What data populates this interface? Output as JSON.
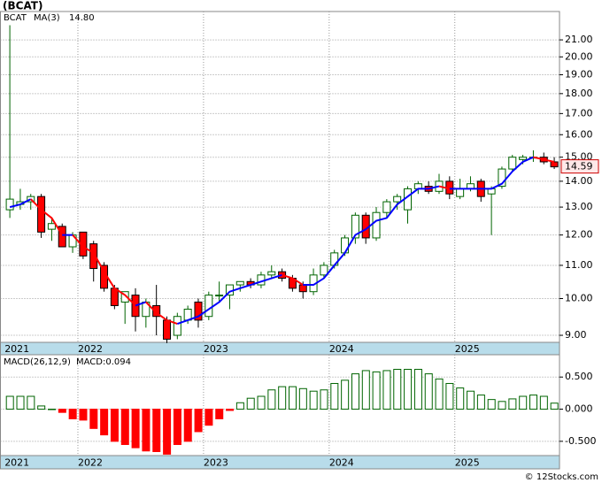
{
  "chart_data": [
    {
      "type": "candlestick",
      "title": "(BCAT)",
      "log": true,
      "grid": true,
      "categories": [
        "2021",
        null,
        null,
        null,
        null,
        null,
        null,
        "2022",
        null,
        null,
        null,
        null,
        null,
        null,
        null,
        null,
        null,
        null,
        null,
        "2023",
        null,
        null,
        null,
        null,
        null,
        null,
        null,
        null,
        null,
        null,
        null,
        "2024",
        null,
        null,
        null,
        null,
        null,
        null,
        null,
        null,
        null,
        null,
        null,
        "2025",
        null,
        null,
        null,
        null,
        null,
        null,
        null,
        null,
        null
      ],
      "series": [
        {
          "name": "BCAT",
          "color_up": "#006400",
          "color_down": "#ff0000",
          "open": [
            12.9,
            13.1,
            13.2,
            13.4,
            12.2,
            12.3,
            11.6,
            12.1,
            11.7,
            11.0,
            10.3,
            9.9,
            10.1,
            9.5,
            9.8,
            9.4,
            9.0,
            9.4,
            9.9,
            9.5,
            10.1,
            10.1,
            10.4,
            10.5,
            10.4,
            10.7,
            10.8,
            10.6,
            10.4,
            10.2,
            10.7,
            11.0,
            11.4,
            11.9,
            12.7,
            11.9,
            12.8,
            13.2,
            12.9,
            13.7,
            13.8,
            13.6,
            14.0,
            13.4,
            13.7,
            14.0,
            13.5,
            13.8,
            14.5,
            14.9,
            15.0,
            15.0,
            14.8
          ],
          "high": [
            21.9,
            13.7,
            13.5,
            13.5,
            12.6,
            12.4,
            12.1,
            12.1,
            11.8,
            11.1,
            10.4,
            10.2,
            10.3,
            10.0,
            10.4,
            9.5,
            9.6,
            9.8,
            10.0,
            10.2,
            10.5,
            10.4,
            10.5,
            10.6,
            10.8,
            11.0,
            10.9,
            10.7,
            10.5,
            10.9,
            11.1,
            11.5,
            12.0,
            12.8,
            12.8,
            13.0,
            13.3,
            13.5,
            13.8,
            14.0,
            14.0,
            14.3,
            14.2,
            14.1,
            14.2,
            14.1,
            13.8,
            14.6,
            15.1,
            15.1,
            15.3,
            15.2,
            15.0
          ],
          "low": [
            12.6,
            12.9,
            12.9,
            11.9,
            11.8,
            11.6,
            11.4,
            11.2,
            10.5,
            10.2,
            9.7,
            9.3,
            9.1,
            9.2,
            9.0,
            8.8,
            8.9,
            9.3,
            9.2,
            9.4,
            9.9,
            9.7,
            10.2,
            10.3,
            10.3,
            10.6,
            10.5,
            10.2,
            10.0,
            10.1,
            10.6,
            10.9,
            11.3,
            11.7,
            11.7,
            11.8,
            12.6,
            12.9,
            12.4,
            13.5,
            13.5,
            13.5,
            13.3,
            13.3,
            13.6,
            13.2,
            12.0,
            13.7,
            14.4,
            14.7,
            14.8,
            14.7,
            14.5
          ],
          "close": [
            13.3,
            13.2,
            13.4,
            12.1,
            12.4,
            11.6,
            12.0,
            11.3,
            10.9,
            10.3,
            9.8,
            10.2,
            9.5,
            9.9,
            9.5,
            8.9,
            9.5,
            9.7,
            9.4,
            10.1,
            10.1,
            10.4,
            10.5,
            10.4,
            10.7,
            10.8,
            10.6,
            10.3,
            10.2,
            10.7,
            11.0,
            11.4,
            11.9,
            12.7,
            11.9,
            12.8,
            13.2,
            13.4,
            13.7,
            13.9,
            13.6,
            14.0,
            13.5,
            13.7,
            13.9,
            13.4,
            13.7,
            14.5,
            15.0,
            15.0,
            15.0,
            14.8,
            14.59
          ]
        },
        {
          "name": "MA(3)",
          "color": "#0000ff",
          "down_color": "#ff0000",
          "last_label": "14.80",
          "values": [
            13.0,
            13.1,
            13.3,
            12.9,
            12.6,
            12.0,
            12.0,
            11.6,
            11.4,
            10.8,
            10.3,
            10.1,
            9.8,
            9.9,
            9.6,
            9.4,
            9.3,
            9.4,
            9.5,
            9.7,
            9.9,
            10.2,
            10.3,
            10.4,
            10.5,
            10.6,
            10.7,
            10.6,
            10.4,
            10.4,
            10.6,
            11.0,
            11.4,
            12.0,
            12.2,
            12.5,
            12.6,
            13.1,
            13.4,
            13.7,
            13.7,
            13.8,
            13.7,
            13.7,
            13.7,
            13.7,
            13.7,
            13.9,
            14.4,
            14.8,
            15.0,
            14.9,
            14.8
          ]
        }
      ],
      "ylim": [
        8.82,
        22.78
      ],
      "yticks": [
        {
          "value": 9,
          "label": "9.00"
        },
        {
          "value": 10,
          "label": "10.00"
        },
        {
          "value": 11,
          "label": "11.00"
        },
        {
          "value": 12,
          "label": "12.00"
        },
        {
          "value": 13,
          "label": "13.00"
        },
        {
          "value": 14,
          "label": "14.00"
        },
        {
          "value": 15,
          "label": "15.00"
        },
        {
          "value": 16,
          "label": "16.00"
        },
        {
          "value": 17,
          "label": "17.00"
        },
        {
          "value": 18,
          "label": "18.00"
        },
        {
          "value": 19,
          "label": "19.00"
        },
        {
          "value": 20,
          "label": "20.00"
        },
        {
          "value": 21,
          "label": "21.00"
        }
      ]
    },
    {
      "type": "bar",
      "title": "MACD(26,12,9)",
      "grid": true,
      "categories": [
        "2021",
        null,
        null,
        null,
        null,
        null,
        null,
        "2022",
        null,
        null,
        null,
        null,
        null,
        null,
        null,
        null,
        null,
        null,
        null,
        "2023",
        null,
        null,
        null,
        null,
        null,
        null,
        null,
        null,
        null,
        null,
        null,
        "2024",
        null,
        null,
        null,
        null,
        null,
        null,
        null,
        null,
        null,
        null,
        null,
        "2025",
        null,
        null,
        null,
        null,
        null,
        null,
        null,
        null,
        null
      ],
      "series": [
        {
          "name": "MACD:0.094",
          "color_up": "#006400",
          "color_down": "#ff0000",
          "values": [
            0.2,
            0.2,
            0.2,
            0.05,
            0.0,
            -0.05,
            -0.15,
            -0.17,
            -0.3,
            -0.4,
            -0.5,
            -0.55,
            -0.6,
            -0.65,
            -0.66,
            -0.7,
            -0.55,
            -0.5,
            -0.35,
            -0.25,
            -0.15,
            -0.02,
            0.1,
            0.17,
            0.2,
            0.3,
            0.35,
            0.35,
            0.32,
            0.28,
            0.3,
            0.4,
            0.45,
            0.55,
            0.6,
            0.58,
            0.6,
            0.62,
            0.62,
            0.62,
            0.55,
            0.47,
            0.4,
            0.33,
            0.28,
            0.22,
            0.15,
            0.12,
            0.16,
            0.2,
            0.22,
            0.2,
            0.094
          ]
        }
      ],
      "ylim": [
        -0.722,
        0.847
      ],
      "yticks": [
        {
          "value": -0.5,
          "label": "-0.500"
        },
        {
          "value": 0,
          "label": "0.000"
        },
        {
          "value": 0.5,
          "label": "0.500"
        }
      ]
    },
    {
      "type": "text",
      "footer": "© 12Stocks.com"
    }
  ]
}
